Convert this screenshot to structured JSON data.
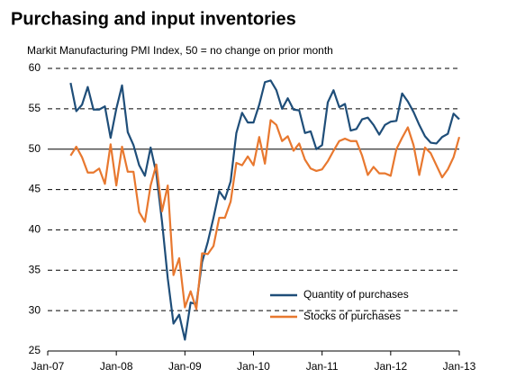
{
  "chart_data": {
    "type": "line",
    "title": "Purchasing and input inventories",
    "subtitle": "Markit Manufacturing PMI Index, 50 = no change on prior month",
    "x": [
      "2007-05",
      "2007-06",
      "2007-07",
      "2007-08",
      "2007-09",
      "2007-10",
      "2007-11",
      "2007-12",
      "2008-01",
      "2008-02",
      "2008-03",
      "2008-04",
      "2008-05",
      "2008-06",
      "2008-07",
      "2008-08",
      "2008-09",
      "2008-10",
      "2008-11",
      "2008-12",
      "2009-01",
      "2009-02",
      "2009-03",
      "2009-04",
      "2009-05",
      "2009-06",
      "2009-07",
      "2009-08",
      "2009-09",
      "2009-10",
      "2009-11",
      "2009-12",
      "2010-01",
      "2010-02",
      "2010-03",
      "2010-04",
      "2010-05",
      "2010-06",
      "2010-07",
      "2010-08",
      "2010-09",
      "2010-10",
      "2010-11",
      "2010-12",
      "2011-01",
      "2011-02",
      "2011-03",
      "2011-04",
      "2011-05",
      "2011-06",
      "2011-07",
      "2011-08",
      "2011-09",
      "2011-10",
      "2011-11",
      "2011-12",
      "2012-01",
      "2012-02",
      "2012-03",
      "2012-04",
      "2012-05",
      "2012-06",
      "2012-07",
      "2012-08",
      "2012-09",
      "2012-10",
      "2012-11",
      "2012-12",
      "2013-01"
    ],
    "series": [
      {
        "name": "Quantity of purchases",
        "color": "#1f4e79",
        "values": [
          58.2,
          54.7,
          55.5,
          57.7,
          54.9,
          54.9,
          55.3,
          51.4,
          55.0,
          57.9,
          52.1,
          50.5,
          48.0,
          46.7,
          50.2,
          47.0,
          41.0,
          34.0,
          28.4,
          29.5,
          26.4,
          31.0,
          30.8,
          36.0,
          38.5,
          41.5,
          44.8,
          43.8,
          46.0,
          52.0,
          54.5,
          53.3,
          53.3,
          55.5,
          58.3,
          58.5,
          57.3,
          55.0,
          56.3,
          54.9,
          54.8,
          52.0,
          52.2,
          50.0,
          50.5,
          55.8,
          57.3,
          55.2,
          55.6,
          52.3,
          52.5,
          53.7,
          53.9,
          53.0,
          51.8,
          53.0,
          53.4,
          53.5,
          56.9,
          55.9,
          54.6,
          53.0,
          51.6,
          50.8,
          50.7,
          51.5,
          51.9,
          54.4,
          53.7
        ]
      },
      {
        "name": "Stocks of purchases",
        "color": "#e8782f",
        "values": [
          49.2,
          50.3,
          49.0,
          47.1,
          47.1,
          47.6,
          45.7,
          50.6,
          45.5,
          50.3,
          47.2,
          47.2,
          42.2,
          41.0,
          45.5,
          48.1,
          42.3,
          45.5,
          34.4,
          36.5,
          30.4,
          32.4,
          30.2,
          37.1,
          37.0,
          38.0,
          41.5,
          41.5,
          43.5,
          48.3,
          48.0,
          49.1,
          48.0,
          51.5,
          48.2,
          53.6,
          53.0,
          51.0,
          51.6,
          49.8,
          50.7,
          48.7,
          47.6,
          47.3,
          47.5,
          48.5,
          49.8,
          51.0,
          51.3,
          51.0,
          51.0,
          49.2,
          46.8,
          47.8,
          47.0,
          47.0,
          46.7,
          50.0,
          51.4,
          52.7,
          50.5,
          46.8,
          50.2,
          49.5,
          48.0,
          46.5,
          47.5,
          49.0,
          51.5
        ]
      }
    ],
    "xlim": [
      "2007-01",
      "2013-01"
    ],
    "xticks": [
      {
        "value": "2007-01",
        "label": "Jan-07"
      },
      {
        "value": "2008-01",
        "label": "Jan-08"
      },
      {
        "value": "2009-01",
        "label": "Jan-09"
      },
      {
        "value": "2010-01",
        "label": "Jan-10"
      },
      {
        "value": "2011-01",
        "label": "Jan-11"
      },
      {
        "value": "2012-01",
        "label": "Jan-12"
      },
      {
        "value": "2013-01",
        "label": "Jan-13"
      }
    ],
    "ylim": [
      25,
      60
    ],
    "yticks": [
      25,
      30,
      35,
      40,
      45,
      50,
      55,
      60
    ],
    "baseline": 50,
    "grid": true,
    "legend": "lower right"
  }
}
